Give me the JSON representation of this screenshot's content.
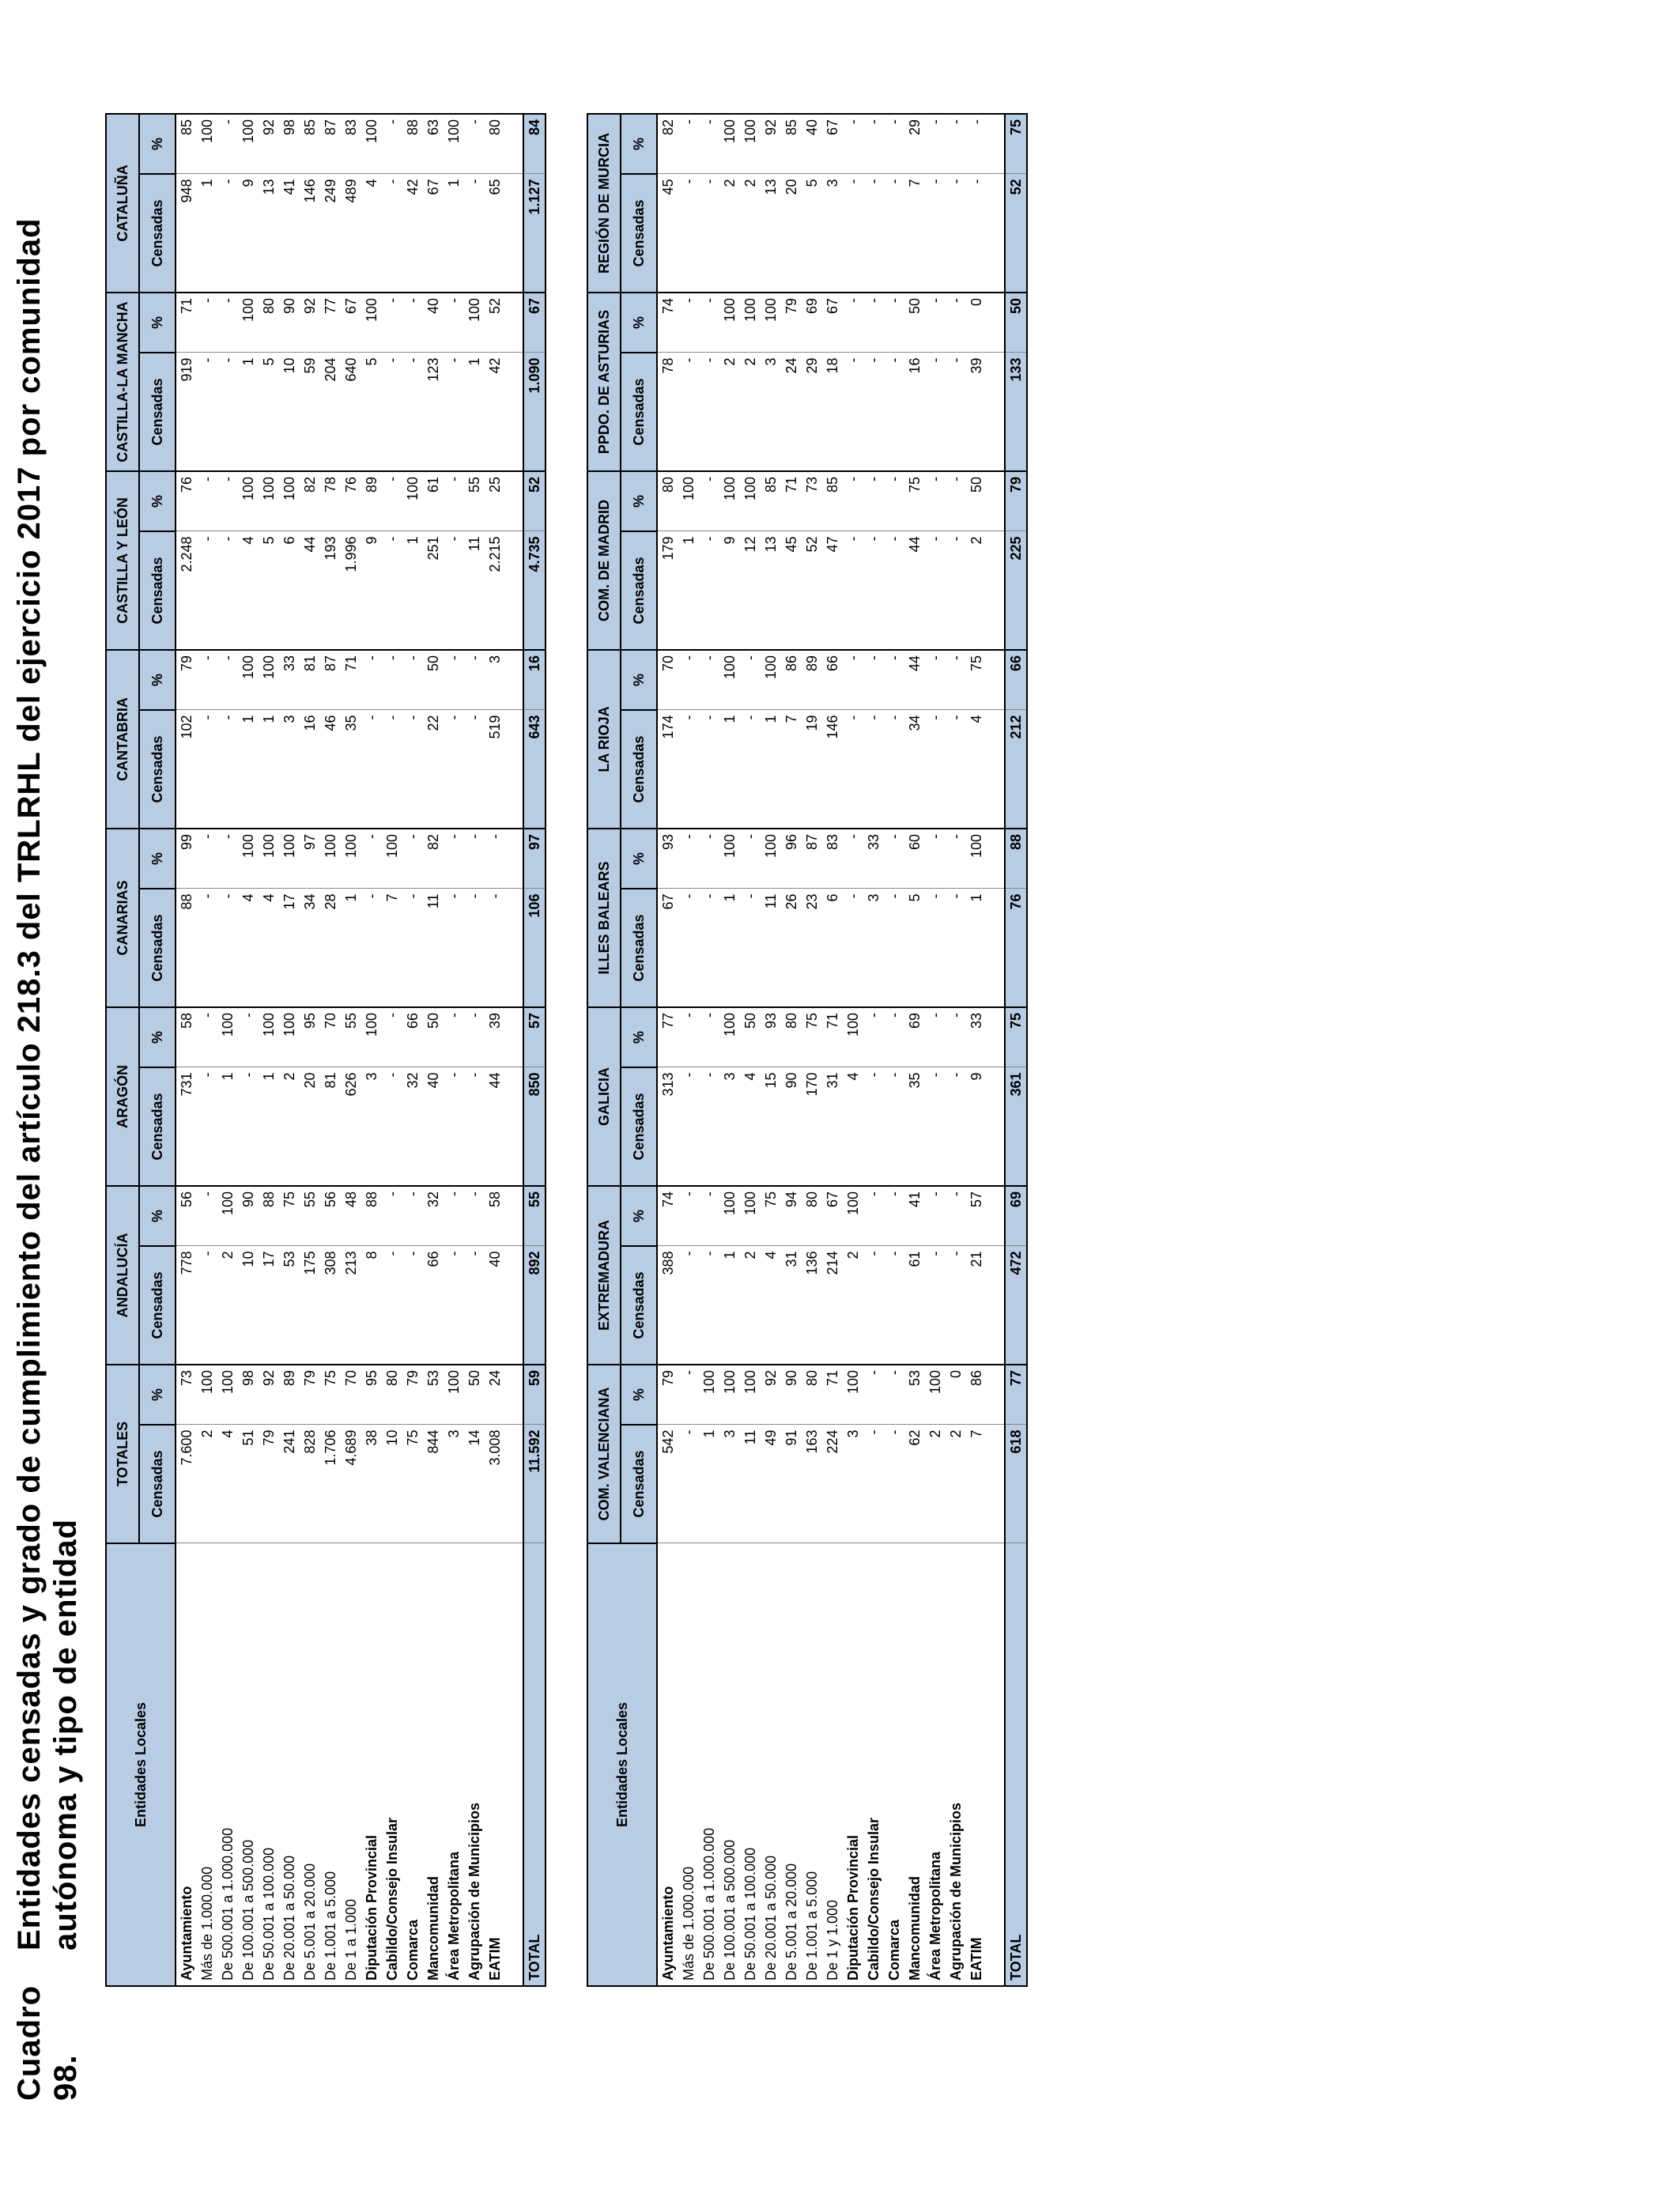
{
  "title": {
    "number": "Cuadro 98.",
    "text": "Entidades censadas y grado de cumplimiento del artículo 218.3 del TRLRHL del ejercicio 2017 por comunidad autónoma y tipo de entidad"
  },
  "tables": [
    {
      "row_header": "Entidades Locales",
      "groups": [
        {
          "name": "TOTALES",
          "columns": [
            "Censadas",
            "%"
          ]
        },
        {
          "name": "ANDALUCÍA",
          "columns": [
            "Censadas",
            "%"
          ]
        },
        {
          "name": "ARAGÓN",
          "columns": [
            "Censadas",
            "%"
          ]
        },
        {
          "name": "CANARIAS",
          "columns": [
            "Censadas",
            "%"
          ]
        },
        {
          "name": "CANTABRIA",
          "columns": [
            "Censadas",
            "%"
          ]
        },
        {
          "name": "CASTILLA Y LEÓN",
          "columns": [
            "Censadas",
            "%"
          ]
        },
        {
          "name": "CASTILLA-LA MANCHA",
          "columns": [
            "Censadas",
            "%"
          ]
        },
        {
          "name": "CATALUÑA",
          "columns": [
            "Censadas",
            "%"
          ]
        }
      ],
      "rows": [
        {
          "label": "Ayuntamiento",
          "values": [
            "7.600",
            "73",
            "778",
            "56",
            "731",
            "58",
            "88",
            "99",
            "102",
            "79",
            "2.248",
            "76",
            "919",
            "71",
            "948",
            "85"
          ]
        },
        {
          "label": "Más de 1.000.000",
          "values": [
            "2",
            "100",
            "-",
            "-",
            "-",
            "-",
            "-",
            "-",
            "-",
            "-",
            "-",
            "-",
            "-",
            "-",
            "1",
            "100"
          ]
        },
        {
          "label": "De 500.001 a 1.000.000",
          "values": [
            "4",
            "100",
            "2",
            "100",
            "1",
            "100",
            "-",
            "-",
            "-",
            "-",
            "-",
            "-",
            "-",
            "-",
            "-",
            "-"
          ]
        },
        {
          "label": "De 100.001 a 500.000",
          "values": [
            "51",
            "98",
            "10",
            "90",
            "-",
            "-",
            "4",
            "100",
            "1",
            "100",
            "4",
            "100",
            "1",
            "100",
            "9",
            "100"
          ]
        },
        {
          "label": "De 50.001 a 100.000",
          "values": [
            "79",
            "92",
            "17",
            "88",
            "1",
            "100",
            "4",
            "100",
            "1",
            "100",
            "5",
            "100",
            "5",
            "80",
            "13",
            "92"
          ]
        },
        {
          "label": "De 20.001 a 50.000",
          "values": [
            "241",
            "89",
            "53",
            "75",
            "2",
            "100",
            "17",
            "100",
            "3",
            "33",
            "6",
            "100",
            "10",
            "90",
            "41",
            "98"
          ]
        },
        {
          "label": "De 5.001 a 20.000",
          "values": [
            "828",
            "79",
            "175",
            "55",
            "20",
            "95",
            "34",
            "97",
            "16",
            "81",
            "44",
            "82",
            "59",
            "92",
            "146",
            "85"
          ]
        },
        {
          "label": "De 1.001 a 5.000",
          "values": [
            "1.706",
            "75",
            "308",
            "56",
            "81",
            "70",
            "28",
            "100",
            "46",
            "87",
            "193",
            "78",
            "204",
            "77",
            "249",
            "87"
          ]
        },
        {
          "label": "De 1 a 1.000",
          "values": [
            "4.689",
            "70",
            "213",
            "48",
            "626",
            "55",
            "1",
            "100",
            "35",
            "71",
            "1.996",
            "76",
            "640",
            "67",
            "489",
            "83"
          ]
        },
        {
          "label": "Diputación Provincial",
          "values": [
            "38",
            "95",
            "8",
            "88",
            "3",
            "100",
            "-",
            "-",
            "-",
            "-",
            "9",
            "89",
            "5",
            "100",
            "4",
            "100"
          ]
        },
        {
          "label": "Cabildo/Consejo Insular",
          "values": [
            "10",
            "80",
            "-",
            "-",
            "-",
            "-",
            "7",
            "100",
            "-",
            "-",
            "-",
            "-",
            "-",
            "-",
            "-",
            "-"
          ]
        },
        {
          "label": "Comarca",
          "values": [
            "75",
            "79",
            "-",
            "-",
            "32",
            "66",
            "-",
            "-",
            "-",
            "-",
            "1",
            "100",
            "-",
            "-",
            "42",
            "88"
          ]
        },
        {
          "label": "Mancomunidad",
          "values": [
            "844",
            "53",
            "66",
            "32",
            "40",
            "50",
            "11",
            "82",
            "22",
            "50",
            "251",
            "61",
            "123",
            "40",
            "67",
            "63"
          ]
        },
        {
          "label": "Área Metropolitana",
          "values": [
            "3",
            "100",
            "-",
            "-",
            "-",
            "-",
            "-",
            "-",
            "-",
            "-",
            "-",
            "-",
            "-",
            "-",
            "1",
            "100"
          ]
        },
        {
          "label": "Agrupación de Municipios",
          "values": [
            "14",
            "50",
            "-",
            "-",
            "-",
            "-",
            "-",
            "-",
            "-",
            "-",
            "11",
            "55",
            "1",
            "100",
            "-",
            "-"
          ]
        },
        {
          "label": "EATIM",
          "values": [
            "3.008",
            "24",
            "40",
            "58",
            "44",
            "39",
            "-",
            "-",
            "519",
            "3",
            "2.215",
            "25",
            "42",
            "52",
            "65",
            "80"
          ]
        },
        {
          "label": "TOTAL",
          "values": [
            "11.592",
            "59",
            "892",
            "55",
            "850",
            "57",
            "106",
            "97",
            "643",
            "16",
            "4.735",
            "52",
            "1.090",
            "67",
            "1.127",
            "84"
          ]
        }
      ]
    },
    {
      "row_header": "Entidades Locales",
      "groups": [
        {
          "name": "COM. VALENCIANA",
          "columns": [
            "Censadas",
            "%"
          ]
        },
        {
          "name": "EXTREMADURA",
          "columns": [
            "Censadas",
            "%"
          ]
        },
        {
          "name": "GALICIA",
          "columns": [
            "Censadas",
            "%"
          ]
        },
        {
          "name": "ILLES BALEARS",
          "columns": [
            "Censadas",
            "%"
          ]
        },
        {
          "name": "LA RIOJA",
          "columns": [
            "Censadas",
            "%"
          ]
        },
        {
          "name": "COM. DE MADRID",
          "columns": [
            "Censadas",
            "%"
          ]
        },
        {
          "name": "PPDO. DE ASTURIAS",
          "columns": [
            "Censadas",
            "%"
          ]
        },
        {
          "name": "REGIÓN DE MURCIA",
          "columns": [
            "Censadas",
            "%"
          ]
        }
      ],
      "rows": [
        {
          "label": "Ayuntamiento",
          "values": [
            "542",
            "79",
            "388",
            "74",
            "313",
            "77",
            "67",
            "93",
            "174",
            "70",
            "179",
            "80",
            "78",
            "74",
            "45",
            "82"
          ]
        },
        {
          "label": "Más de 1.000.000",
          "values": [
            "-",
            "-",
            "-",
            "-",
            "-",
            "-",
            "-",
            "-",
            "-",
            "-",
            "1",
            "100",
            "-",
            "-",
            "-",
            "-"
          ]
        },
        {
          "label": "De 500.001 a 1.000.000",
          "values": [
            "1",
            "100",
            "-",
            "-",
            "-",
            "-",
            "-",
            "-",
            "-",
            "-",
            "-",
            "-",
            "-",
            "-",
            "-",
            "-"
          ]
        },
        {
          "label": "De 100.001 a 500.000",
          "values": [
            "3",
            "100",
            "1",
            "100",
            "3",
            "100",
            "1",
            "100",
            "1",
            "100",
            "9",
            "100",
            "2",
            "100",
            "2",
            "100"
          ]
        },
        {
          "label": "De 50.001 a 100.000",
          "values": [
            "11",
            "100",
            "2",
            "100",
            "4",
            "50",
            "-",
            "-",
            "-",
            "-",
            "12",
            "100",
            "2",
            "100",
            "2",
            "100"
          ]
        },
        {
          "label": "De 20.001 a 50.000",
          "values": [
            "49",
            "92",
            "4",
            "75",
            "15",
            "93",
            "11",
            "100",
            "1",
            "100",
            "13",
            "85",
            "3",
            "100",
            "13",
            "92"
          ]
        },
        {
          "label": "De 5.001 a 20.000",
          "values": [
            "91",
            "90",
            "31",
            "94",
            "90",
            "80",
            "26",
            "96",
            "7",
            "86",
            "45",
            "71",
            "24",
            "79",
            "20",
            "85"
          ]
        },
        {
          "label": "De 1.001 a 5.000",
          "values": [
            "163",
            "80",
            "136",
            "80",
            "170",
            "75",
            "23",
            "87",
            "19",
            "89",
            "52",
            "73",
            "29",
            "69",
            "5",
            "40"
          ]
        },
        {
          "label": "De 1 y 1.000",
          "values": [
            "224",
            "71",
            "214",
            "67",
            "31",
            "71",
            "6",
            "83",
            "146",
            "66",
            "47",
            "85",
            "18",
            "67",
            "3",
            "67"
          ]
        },
        {
          "label": "Diputación Provincial",
          "values": [
            "3",
            "100",
            "2",
            "100",
            "4",
            "100",
            "-",
            "-",
            "-",
            "-",
            "-",
            "-",
            "-",
            "-",
            "-",
            "-"
          ]
        },
        {
          "label": "Cabildo/Consejo Insular",
          "values": [
            "-",
            "-",
            "-",
            "-",
            "-",
            "-",
            "3",
            "33",
            "-",
            "-",
            "-",
            "-",
            "-",
            "-",
            "-",
            "-"
          ]
        },
        {
          "label": "Comarca",
          "values": [
            "-",
            "-",
            "-",
            "-",
            "-",
            "-",
            "-",
            "-",
            "-",
            "-",
            "-",
            "-",
            "-",
            "-",
            "-",
            "-"
          ]
        },
        {
          "label": "Mancomunidad",
          "values": [
            "62",
            "53",
            "61",
            "41",
            "35",
            "69",
            "5",
            "60",
            "34",
            "44",
            "44",
            "75",
            "16",
            "50",
            "7",
            "29"
          ]
        },
        {
          "label": "Área Metropolitana",
          "values": [
            "2",
            "100",
            "-",
            "-",
            "-",
            "-",
            "-",
            "-",
            "-",
            "-",
            "-",
            "-",
            "-",
            "-",
            "-",
            "-"
          ]
        },
        {
          "label": "Agrupación de Municipios",
          "values": [
            "2",
            "0",
            "-",
            "-",
            "-",
            "-",
            "-",
            "-",
            "-",
            "-",
            "-",
            "-",
            "-",
            "-",
            "-",
            "-"
          ]
        },
        {
          "label": "EATIM",
          "values": [
            "7",
            "86",
            "21",
            "57",
            "9",
            "33",
            "1",
            "100",
            "4",
            "75",
            "2",
            "50",
            "39",
            "0",
            "-",
            "-"
          ]
        },
        {
          "label": "TOTAL",
          "values": [
            "618",
            "77",
            "472",
            "69",
            "361",
            "75",
            "76",
            "88",
            "212",
            "66",
            "225",
            "79",
            "133",
            "50",
            "52",
            "75"
          ]
        }
      ]
    }
  ]
}
